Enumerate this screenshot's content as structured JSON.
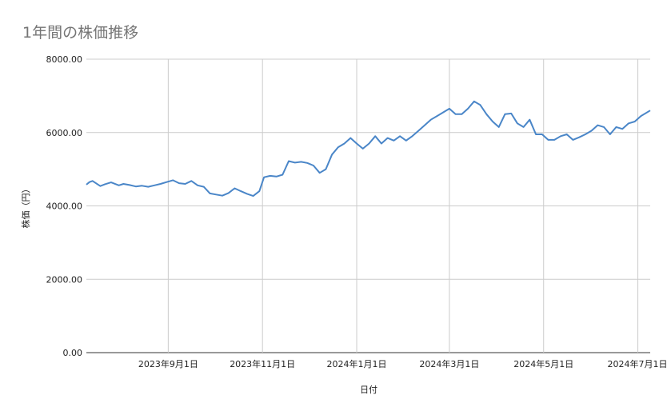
{
  "chart_data": {
    "type": "line",
    "title": "1年間の株価推移",
    "xlabel": "日付",
    "ylabel": "株価（円）",
    "ylim": [
      0,
      8000
    ],
    "y_ticks": [
      "0.00",
      "2000.00",
      "4000.00",
      "6000.00",
      "8000.00"
    ],
    "x_ticks": [
      {
        "label": "2023年9月1日",
        "date": "2023-09-01"
      },
      {
        "label": "2023年11月1日",
        "date": "2023-11-01"
      },
      {
        "label": "2024年1月1日",
        "date": "2024-01-01"
      },
      {
        "label": "2024年3月1日",
        "date": "2024-03-01"
      },
      {
        "label": "2024年5月1日",
        "date": "2024-05-01"
      },
      {
        "label": "2024年7月1日",
        "date": "2024-07-01"
      }
    ],
    "xlim": [
      "2023-07-10",
      "2024-07-09"
    ],
    "grid": true,
    "line_color": "#4a86c8",
    "series": [
      {
        "x": [
          "2023-07-10",
          "2023-07-12",
          "2023-07-14",
          "2023-07-19",
          "2023-07-22",
          "2023-07-26",
          "2023-07-31",
          "2023-08-03",
          "2023-08-07",
          "2023-08-11",
          "2023-08-15",
          "2023-08-19",
          "2023-08-23",
          "2023-08-27",
          "2023-08-31",
          "2023-09-04",
          "2023-09-08",
          "2023-09-12",
          "2023-09-16",
          "2023-09-20",
          "2023-09-24",
          "2023-09-28",
          "2023-10-02",
          "2023-10-06",
          "2023-10-10",
          "2023-10-14",
          "2023-10-18",
          "2023-10-22",
          "2023-10-26",
          "2023-10-30",
          "2023-11-02",
          "2023-11-06",
          "2023-11-10",
          "2023-11-14",
          "2023-11-18",
          "2023-11-22",
          "2023-11-26",
          "2023-11-30",
          "2023-12-04",
          "2023-12-08",
          "2023-12-12",
          "2023-12-16",
          "2023-12-20",
          "2023-12-24",
          "2023-12-28",
          "2024-01-01",
          "2024-01-05",
          "2024-01-09",
          "2024-01-13",
          "2024-01-17",
          "2024-01-21",
          "2024-01-25",
          "2024-01-29",
          "2024-02-02",
          "2024-02-06",
          "2024-02-10",
          "2024-02-14",
          "2024-02-18",
          "2024-02-22",
          "2024-02-26",
          "2024-03-01",
          "2024-03-05",
          "2024-03-09",
          "2024-03-13",
          "2024-03-17",
          "2024-03-21",
          "2024-03-25",
          "2024-03-29",
          "2024-04-02",
          "2024-04-06",
          "2024-04-10",
          "2024-04-14",
          "2024-04-18",
          "2024-04-22",
          "2024-04-26",
          "2024-04-30",
          "2024-05-04",
          "2024-05-08",
          "2024-05-12",
          "2024-05-16",
          "2024-05-20",
          "2024-05-24",
          "2024-05-28",
          "2024-06-01",
          "2024-06-05",
          "2024-06-09",
          "2024-06-13",
          "2024-06-17",
          "2024-06-21",
          "2024-06-25",
          "2024-06-29",
          "2024-07-03",
          "2024-07-09"
        ],
        "values": [
          4580,
          4650,
          4680,
          4540,
          4590,
          4640,
          4560,
          4600,
          4570,
          4530,
          4550,
          4520,
          4560,
          4600,
          4650,
          4700,
          4620,
          4600,
          4680,
          4560,
          4520,
          4340,
          4310,
          4280,
          4350,
          4480,
          4400,
          4330,
          4270,
          4400,
          4780,
          4820,
          4800,
          4850,
          5220,
          5180,
          5200,
          5170,
          5100,
          4900,
          5000,
          5400,
          5600,
          5700,
          5850,
          5700,
          5560,
          5700,
          5900,
          5700,
          5850,
          5780,
          5900,
          5780,
          5900,
          6050,
          6200,
          6350,
          6450,
          6550,
          6650,
          6500,
          6500,
          6650,
          6850,
          6750,
          6500,
          6300,
          6150,
          6500,
          6520,
          6250,
          6150,
          6350,
          5950,
          5950,
          5800,
          5800,
          5900,
          5950,
          5800,
          5870,
          5950,
          6050,
          6200,
          6150,
          5950,
          6150,
          6100,
          6250,
          6300,
          6450,
          6600
        ]
      }
    ]
  }
}
